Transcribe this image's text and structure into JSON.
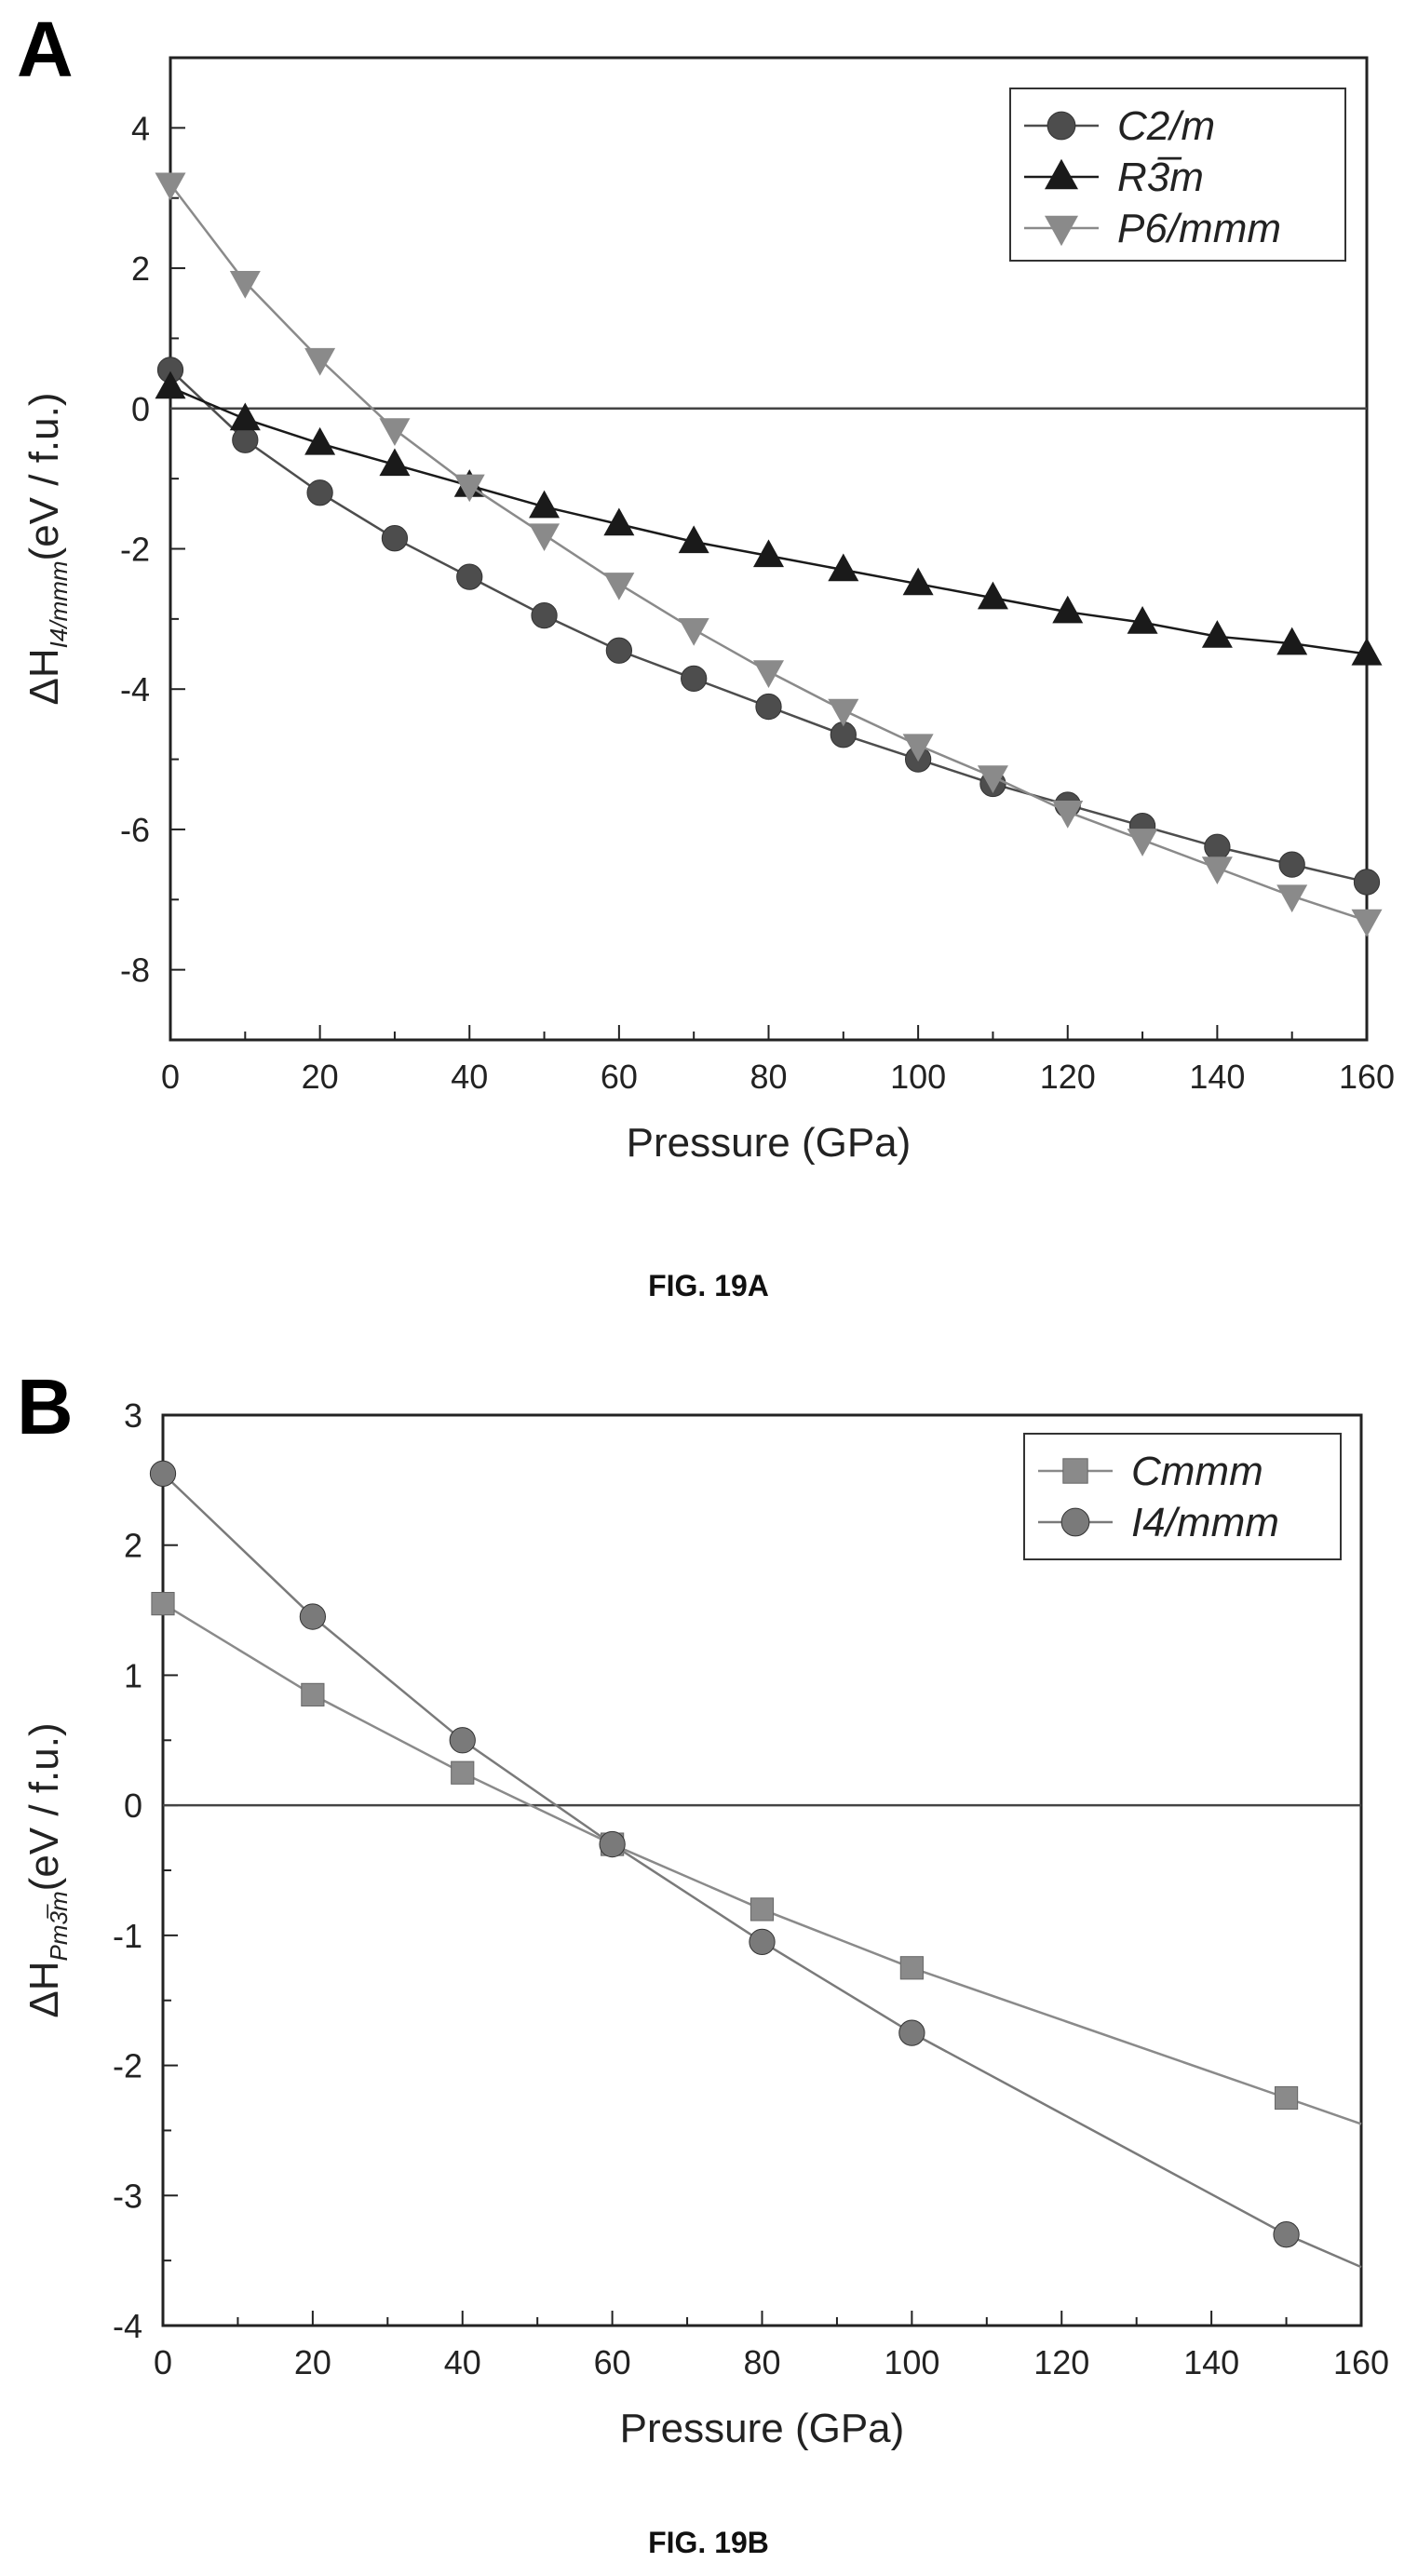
{
  "chart_data": [
    {
      "type": "line",
      "panel": "A",
      "caption": "FIG. 19A",
      "xlabel": "Pressure (GPa)",
      "ylabel": "ΔH",
      "ylabel_sub": "I4/mmm",
      "ylabel_unit": "(eV / f.u.)",
      "xlim": [
        0,
        160
      ],
      "ylim": [
        -9,
        5
      ],
      "xticks": [
        0,
        20,
        40,
        60,
        80,
        100,
        120,
        140,
        160
      ],
      "yticks": [
        -8,
        -6,
        -4,
        -2,
        0,
        2,
        4
      ],
      "zero_line": true,
      "legend_position": "top-right",
      "series": [
        {
          "name": "C2/m",
          "marker": "circle",
          "color": "#4d4d4d",
          "x": [
            0,
            10,
            20,
            30,
            40,
            50,
            60,
            70,
            80,
            90,
            100,
            110,
            120,
            130,
            140,
            150,
            160
          ],
          "y": [
            0.55,
            -0.45,
            -1.2,
            -1.85,
            -2.4,
            -2.95,
            -3.45,
            -3.85,
            -4.25,
            -4.65,
            -5.0,
            -5.35,
            -5.65,
            -5.95,
            -6.25,
            -6.5,
            -6.75
          ]
        },
        {
          "name": "R3̅m",
          "marker": "triangle-up",
          "color": "#1a1a1a",
          "x": [
            0,
            10,
            20,
            30,
            40,
            50,
            60,
            70,
            80,
            90,
            100,
            110,
            120,
            130,
            140,
            150,
            160
          ],
          "y": [
            0.3,
            -0.15,
            -0.5,
            -0.8,
            -1.1,
            -1.4,
            -1.65,
            -1.9,
            -2.1,
            -2.3,
            -2.5,
            -2.7,
            -2.9,
            -3.05,
            -3.25,
            -3.35,
            -3.5
          ]
        },
        {
          "name": "P6/mmm",
          "marker": "triangle-down",
          "color": "#8a8a8a",
          "x": [
            0,
            10,
            20,
            30,
            40,
            50,
            60,
            70,
            80,
            90,
            100,
            110,
            120,
            130,
            140,
            150,
            160
          ],
          "y": [
            3.2,
            1.8,
            0.7,
            -0.3,
            -1.1,
            -1.8,
            -2.5,
            -3.15,
            -3.75,
            -4.3,
            -4.8,
            -5.25,
            -5.75,
            -6.15,
            -6.55,
            -6.95,
            -7.3
          ]
        }
      ]
    },
    {
      "type": "line",
      "panel": "B",
      "caption": "FIG. 19B",
      "xlabel": "Pressure (GPa)",
      "ylabel": "ΔH",
      "ylabel_sub": "Pm3̅m",
      "ylabel_unit": "(eV / f.u.)",
      "xlim": [
        0,
        160
      ],
      "ylim": [
        -4,
        3
      ],
      "xticks": [
        0,
        20,
        40,
        60,
        80,
        100,
        120,
        140,
        160
      ],
      "yticks": [
        -4,
        -3,
        -2,
        -1,
        0,
        1,
        2,
        3
      ],
      "zero_line": true,
      "legend_position": "top-right",
      "series": [
        {
          "name": "Cmmm",
          "marker": "square",
          "color": "#8a8a8a",
          "x": [
            0,
            20,
            40,
            60,
            80,
            100,
            150
          ],
          "y": [
            1.55,
            0.85,
            0.25,
            -0.3,
            -0.8,
            -1.25,
            -2.25
          ],
          "line_end": [
            160,
            -2.45
          ]
        },
        {
          "name": "I4/mmm",
          "marker": "circle",
          "color": "#7a7a7a",
          "x": [
            0,
            20,
            40,
            60,
            80,
            100,
            150
          ],
          "y": [
            2.55,
            1.45,
            0.5,
            -0.3,
            -1.05,
            -1.75,
            -3.3
          ],
          "line_end": [
            160,
            -3.55
          ]
        }
      ]
    }
  ]
}
